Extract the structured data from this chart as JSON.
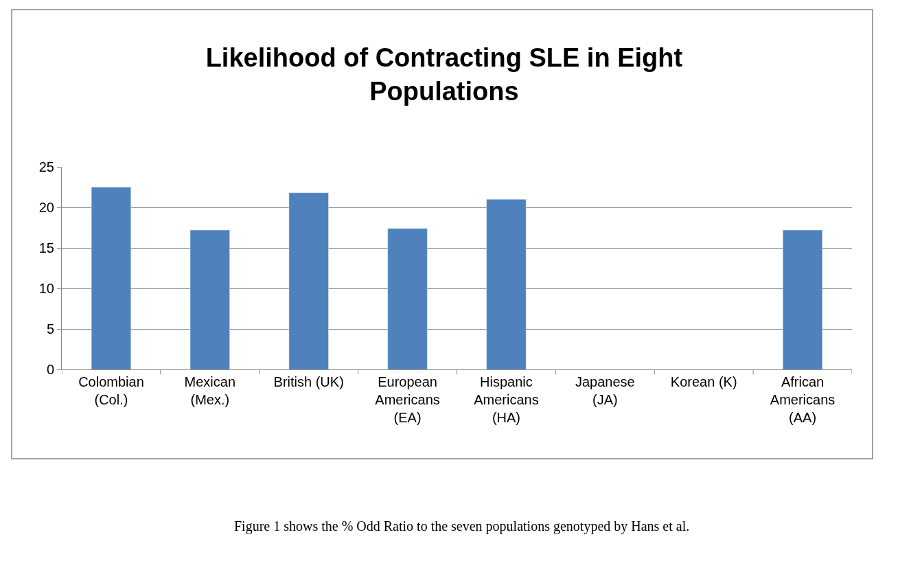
{
  "chart_data": {
    "type": "bar",
    "title": "Likelihood of Contracting SLE in Eight Populations",
    "categories": [
      "Colombian (Col.)",
      "Mexican (Mex.)",
      "British (UK)",
      "European Americans (EA)",
      "Hispanic Americans (HA)",
      "Japanese (JA)",
      "Korean (K)",
      "African Americans (AA)"
    ],
    "values": [
      22.5,
      17.2,
      21.8,
      17.4,
      21.0,
      null,
      null,
      17.2
    ],
    "color": "#4f81bd",
    "ylim": [
      0,
      25
    ],
    "yticks": [
      0,
      5,
      10,
      15,
      20,
      25
    ],
    "grid": "y",
    "legend": false,
    "annotations": [
      "Figure 1 shows the % Odd Ratio to the seven populations genotyped by Hans et al."
    ]
  }
}
